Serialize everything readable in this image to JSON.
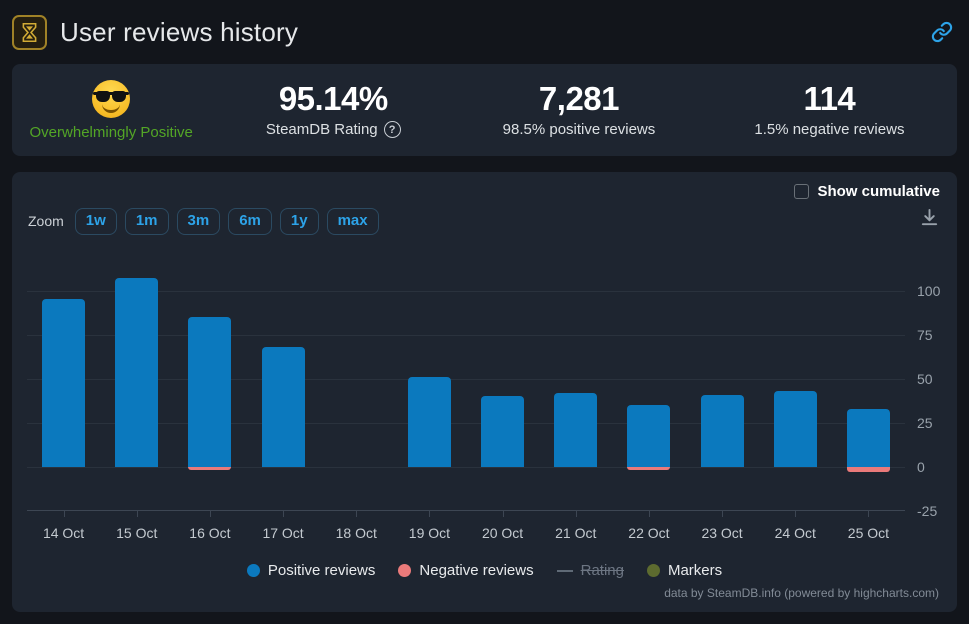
{
  "header": {
    "title": "User reviews history",
    "icon": "hourglass-award-icon",
    "accent_blue": "#2da3e8"
  },
  "summary": {
    "sentiment": {
      "emoji": "smiling-face-with-sunglasses",
      "label": "Overwhelmingly Positive",
      "color": "#53a626"
    },
    "stats": [
      {
        "value": "95.14%",
        "label": "SteamDB Rating",
        "has_help_icon": true
      },
      {
        "value": "7,281",
        "label": "98.5% positive reviews"
      },
      {
        "value": "114",
        "label": "1.5% negative reviews"
      }
    ]
  },
  "chart_panel": {
    "show_cumulative_label": "Show cumulative",
    "checkbox_checked": false,
    "zoom_label": "Zoom",
    "zoom_buttons": [
      "1w",
      "1m",
      "3m",
      "6m",
      "1y",
      "max"
    ],
    "credits": "data by SteamDB.info (powered by highcharts.com)"
  },
  "chart_data": {
    "type": "bar",
    "title": "",
    "categories": [
      "14 Oct",
      "15 Oct",
      "16 Oct",
      "17 Oct",
      "18 Oct",
      "19 Oct",
      "20 Oct",
      "21 Oct",
      "22 Oct",
      "23 Oct",
      "24 Oct",
      "25 Oct"
    ],
    "series": [
      {
        "name": "Positive reviews",
        "color": "#0b79be",
        "values": [
          95,
          107,
          85,
          68,
          0,
          51,
          40,
          42,
          35,
          41,
          43,
          33
        ]
      },
      {
        "name": "Negative reviews",
        "color": "#ea7a7a",
        "values": [
          0,
          0,
          -2,
          0,
          0,
          0,
          0,
          0,
          -2,
          0,
          0,
          -3
        ]
      },
      {
        "name": "Rating",
        "color": "#5f6a76",
        "marker": "line",
        "disabled": true,
        "values": []
      },
      {
        "name": "Markers",
        "color": "#5d6b2f",
        "marker": "dot",
        "disabled": false,
        "values": []
      }
    ],
    "xlabel": "",
    "ylabel": "",
    "ylim": [
      -25,
      123
    ],
    "yticks": [
      100,
      75,
      50,
      25,
      0,
      -25
    ],
    "grid": true,
    "legend_position": "bottom",
    "yaxis_side": "right"
  }
}
